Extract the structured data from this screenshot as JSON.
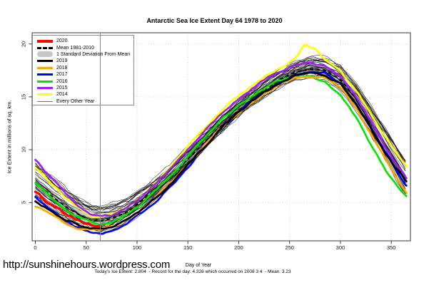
{
  "title": "Antarctic Sea Ice Extent Day 64 1978 to 2020",
  "annotation": {
    "current_value": "2.804",
    "color": "#FF0000"
  },
  "footer": {
    "url": "http://sunshinehours.wordpress.com",
    "stats": "Today's Ice Extent: 2.804  - Record for the day: 4.326 which occurred on 2008 3 4  - Mean: 3.23"
  },
  "legend": {
    "items": [
      {
        "label": "2020",
        "type": "thick-line",
        "color": "#FF0000",
        "thickness": 4
      },
      {
        "label": "Mean 1981-2010",
        "type": "dashed-line",
        "color": "#000000",
        "thickness": 3
      },
      {
        "label": "1 Standard Deviation From Mean",
        "type": "band",
        "color": "#C8C8C8",
        "thickness": 8
      },
      {
        "label": "2019",
        "type": "thick-line",
        "color": "#000000",
        "thickness": 3
      },
      {
        "label": "2018",
        "type": "thick-line",
        "color": "#FFA500",
        "thickness": 3
      },
      {
        "label": "2017",
        "type": "thick-line",
        "color": "#0000FF",
        "thickness": 3
      },
      {
        "label": "2016",
        "type": "thick-line",
        "color": "#00E500",
        "thickness": 3
      },
      {
        "label": "2015",
        "type": "thick-line",
        "color": "#A020F0",
        "thickness": 3
      },
      {
        "label": "2014",
        "type": "thick-line",
        "color": "#FFFF00",
        "thickness": 3
      },
      {
        "label": "Every Other Year",
        "type": "thin-line",
        "color": "#777777",
        "thickness": 1
      }
    ]
  },
  "chart_data": {
    "type": "line",
    "title": "Antarctic Sea Ice Extent Day 64 1978 to 2020",
    "xlabel": "Day of Year",
    "ylabel": "Ice Extent in millions of sq. km.",
    "xlim": [
      0,
      365
    ],
    "ylim": [
      1,
      21
    ],
    "x_ticks": [
      0,
      50,
      100,
      150,
      200,
      250,
      300,
      350
    ],
    "y_ticks": [
      5,
      10,
      15,
      20
    ],
    "grid": "dotted",
    "legend_position": "topleft",
    "marker_day": 64,
    "today_value": 2.804,
    "record_value": 4.326,
    "mean_value": 3.23,
    "std_band": {
      "name": "1 Standard Deviation From Mean",
      "color": "#C8C8C8",
      "half_width": 0.45
    },
    "other_years": {
      "name": "Every Other Year",
      "color": "#111111",
      "width": 0.55,
      "count": 34
    },
    "series": [
      {
        "name": "Mean 1981-2010",
        "color": "#000000",
        "style": "dashed",
        "width": 2,
        "points": [
          [
            0,
            6.9
          ],
          [
            15,
            5.7
          ],
          [
            30,
            4.6
          ],
          [
            45,
            3.7
          ],
          [
            55,
            3.3
          ],
          [
            64,
            3.23
          ],
          [
            75,
            3.5
          ],
          [
            90,
            4.1
          ],
          [
            105,
            5.2
          ],
          [
            120,
            6.4
          ],
          [
            135,
            7.7
          ],
          [
            150,
            9.1
          ],
          [
            165,
            10.6
          ],
          [
            180,
            12.0
          ],
          [
            195,
            13.3
          ],
          [
            210,
            14.5
          ],
          [
            225,
            15.6
          ],
          [
            240,
            16.6
          ],
          [
            255,
            17.3
          ],
          [
            270,
            17.7
          ],
          [
            285,
            17.5
          ],
          [
            300,
            16.6
          ],
          [
            315,
            14.9
          ],
          [
            330,
            12.6
          ],
          [
            345,
            10.2
          ],
          [
            355,
            8.6
          ],
          [
            365,
            7.0
          ]
        ]
      },
      {
        "name": "2020",
        "color": "#FF0000",
        "style": "solid",
        "width": 3.4,
        "points": [
          [
            0,
            6.0
          ],
          [
            10,
            5.2
          ],
          [
            20,
            4.5
          ],
          [
            30,
            3.9
          ],
          [
            40,
            3.4
          ],
          [
            50,
            3.0
          ],
          [
            57,
            2.87
          ],
          [
            64,
            2.804
          ]
        ]
      },
      {
        "name": "2019",
        "color": "#000000",
        "style": "solid",
        "width": 2.6,
        "points": [
          [
            0,
            5.15
          ],
          [
            15,
            4.2
          ],
          [
            30,
            3.4
          ],
          [
            45,
            2.85
          ],
          [
            55,
            2.6
          ],
          [
            64,
            2.55
          ],
          [
            75,
            2.7
          ],
          [
            90,
            3.3
          ],
          [
            105,
            4.3
          ],
          [
            120,
            5.6
          ],
          [
            135,
            7.0
          ],
          [
            150,
            8.6
          ],
          [
            165,
            10.2
          ],
          [
            180,
            11.8
          ],
          [
            195,
            13.2
          ],
          [
            210,
            14.4
          ],
          [
            225,
            15.4
          ],
          [
            240,
            16.3
          ],
          [
            255,
            17.0
          ],
          [
            270,
            17.3
          ],
          [
            285,
            17.1
          ],
          [
            300,
            16.2
          ],
          [
            315,
            14.4
          ],
          [
            330,
            12.0
          ],
          [
            345,
            9.6
          ],
          [
            355,
            8.2
          ],
          [
            365,
            7.0
          ]
        ]
      },
      {
        "name": "2018",
        "color": "#FFA500",
        "style": "solid",
        "width": 2.6,
        "points": [
          [
            0,
            4.7
          ],
          [
            15,
            3.8
          ],
          [
            30,
            3.0
          ],
          [
            45,
            2.5
          ],
          [
            55,
            2.35
          ],
          [
            64,
            2.4
          ],
          [
            75,
            2.7
          ],
          [
            90,
            3.4
          ],
          [
            105,
            4.4
          ],
          [
            120,
            5.7
          ],
          [
            135,
            7.1
          ],
          [
            150,
            8.7
          ],
          [
            165,
            10.3
          ],
          [
            180,
            11.8
          ],
          [
            195,
            13.1
          ],
          [
            210,
            14.3
          ],
          [
            225,
            15.3
          ],
          [
            240,
            16.1
          ],
          [
            255,
            16.8
          ],
          [
            270,
            17.0
          ],
          [
            285,
            16.8
          ],
          [
            300,
            15.9
          ],
          [
            315,
            13.9
          ],
          [
            330,
            11.4
          ],
          [
            345,
            8.9
          ],
          [
            355,
            7.3
          ],
          [
            365,
            5.9
          ]
        ]
      },
      {
        "name": "2017",
        "color": "#0000FF",
        "style": "solid",
        "width": 2.6,
        "points": [
          [
            0,
            5.5
          ],
          [
            15,
            4.3
          ],
          [
            30,
            3.3
          ],
          [
            45,
            2.5
          ],
          [
            55,
            2.2
          ],
          [
            64,
            2.1
          ],
          [
            75,
            2.3
          ],
          [
            90,
            3.0
          ],
          [
            105,
            4.0
          ],
          [
            120,
            5.3
          ],
          [
            135,
            6.8
          ],
          [
            150,
            8.4
          ],
          [
            165,
            10.1
          ],
          [
            180,
            11.7
          ],
          [
            195,
            13.1
          ],
          [
            210,
            14.4
          ],
          [
            225,
            15.4
          ],
          [
            240,
            16.3
          ],
          [
            255,
            17.0
          ],
          [
            270,
            17.3
          ],
          [
            285,
            17.2
          ],
          [
            300,
            16.3
          ],
          [
            315,
            14.5
          ],
          [
            330,
            12.1
          ],
          [
            345,
            9.7
          ],
          [
            355,
            8.1
          ],
          [
            365,
            6.6
          ]
        ]
      },
      {
        "name": "2016",
        "color": "#00E500",
        "style": "solid",
        "width": 2.6,
        "points": [
          [
            0,
            6.8
          ],
          [
            15,
            5.5
          ],
          [
            30,
            4.3
          ],
          [
            45,
            3.5
          ],
          [
            55,
            3.1
          ],
          [
            64,
            3.0
          ],
          [
            75,
            3.2
          ],
          [
            90,
            3.9
          ],
          [
            105,
            4.9
          ],
          [
            120,
            6.3
          ],
          [
            135,
            7.8
          ],
          [
            150,
            9.4
          ],
          [
            165,
            11.0
          ],
          [
            180,
            12.5
          ],
          [
            195,
            13.8
          ],
          [
            210,
            14.9
          ],
          [
            225,
            15.8
          ],
          [
            240,
            16.5
          ],
          [
            255,
            17.0
          ],
          [
            270,
            17.0
          ],
          [
            285,
            16.4
          ],
          [
            300,
            15.2
          ],
          [
            315,
            13.1
          ],
          [
            330,
            10.4
          ],
          [
            345,
            7.9
          ],
          [
            355,
            6.6
          ],
          [
            365,
            5.6
          ]
        ]
      },
      {
        "name": "2015",
        "color": "#A020F0",
        "style": "solid",
        "width": 2.6,
        "points": [
          [
            0,
            9.0
          ],
          [
            15,
            7.4
          ],
          [
            30,
            5.8
          ],
          [
            45,
            4.5
          ],
          [
            55,
            3.9
          ],
          [
            64,
            3.7
          ],
          [
            75,
            3.8
          ],
          [
            90,
            4.5
          ],
          [
            105,
            5.6
          ],
          [
            120,
            7.0
          ],
          [
            135,
            8.5
          ],
          [
            150,
            10.1
          ],
          [
            165,
            11.7
          ],
          [
            180,
            13.2
          ],
          [
            195,
            14.5
          ],
          [
            210,
            15.6
          ],
          [
            225,
            16.6
          ],
          [
            240,
            17.4
          ],
          [
            255,
            18.0
          ],
          [
            270,
            18.2
          ],
          [
            285,
            17.9
          ],
          [
            300,
            16.9
          ],
          [
            315,
            15.1
          ],
          [
            330,
            12.7
          ],
          [
            345,
            10.2
          ],
          [
            355,
            8.6
          ],
          [
            365,
            7.3
          ]
        ]
      },
      {
        "name": "2014",
        "color": "#FFFF00",
        "style": "solid",
        "width": 2.6,
        "points": [
          [
            0,
            8.4
          ],
          [
            15,
            6.9
          ],
          [
            30,
            5.5
          ],
          [
            45,
            4.3
          ],
          [
            55,
            3.7
          ],
          [
            64,
            3.6
          ],
          [
            75,
            3.8
          ],
          [
            90,
            4.5
          ],
          [
            105,
            5.6
          ],
          [
            120,
            7.0
          ],
          [
            135,
            8.6
          ],
          [
            150,
            10.3
          ],
          [
            165,
            11.9
          ],
          [
            180,
            13.4
          ],
          [
            195,
            14.8
          ],
          [
            210,
            15.9
          ],
          [
            225,
            16.9
          ],
          [
            240,
            17.7
          ],
          [
            255,
            18.6
          ],
          [
            265,
            20.0
          ],
          [
            275,
            19.5
          ],
          [
            285,
            18.6
          ],
          [
            300,
            17.4
          ],
          [
            315,
            15.7
          ],
          [
            330,
            13.5
          ],
          [
            345,
            11.1
          ],
          [
            355,
            9.6
          ],
          [
            365,
            8.4
          ]
        ]
      }
    ]
  }
}
